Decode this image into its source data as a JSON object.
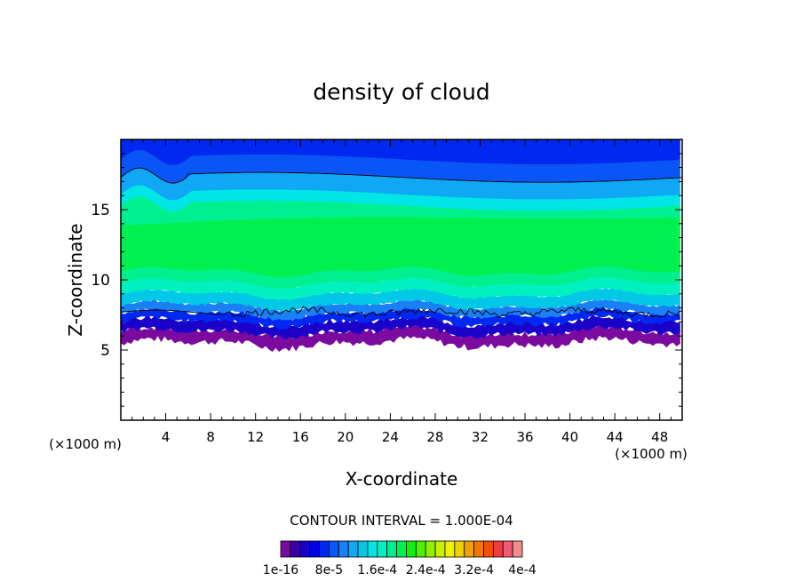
{
  "chart_data": {
    "type": "heatmap",
    "title": "density of cloud",
    "xlabel": "X-coordinate",
    "ylabel": "Z-coordinate",
    "x_unit": "(×1000 m)",
    "xlim": [
      0,
      50
    ],
    "ylim": [
      0,
      20
    ],
    "x_ticks": [
      4,
      8,
      12,
      16,
      20,
      24,
      28,
      32,
      36,
      40,
      44,
      48
    ],
    "y_ticks": [
      5,
      10,
      15
    ],
    "grid": false,
    "contour_interval_label": "CONTOUR INTERVAL = 1.000E-04",
    "colorbar": {
      "labels": [
        "1e-16",
        "8e-5",
        "1.6e-4",
        "2.4e-4",
        "3.2e-4",
        "4e-4"
      ],
      "colors": [
        "#7b0a9e",
        "#3a00a8",
        "#1a00c8",
        "#0000e6",
        "#0028f0",
        "#0a55f5",
        "#1a80f5",
        "#10a8f5",
        "#00c8e6",
        "#00e6e6",
        "#00f0c0",
        "#00f090",
        "#00f050",
        "#10f010",
        "#50f000",
        "#90f000",
        "#c8f000",
        "#f0f000",
        "#f0d000",
        "#f0a000",
        "#f07800",
        "#f05000",
        "#f03c3c",
        "#f05a78",
        "#f08c8c"
      ],
      "range": [
        0,
        0.0004
      ]
    },
    "layers": [
      {
        "z_bottom": 5.5,
        "z_top": 6.3,
        "color": "#7b0a9e",
        "jag": 0.25
      },
      {
        "z_bottom": 6.3,
        "z_top": 7.0,
        "color": "#1a00c8",
        "jag": 0.2
      },
      {
        "z_bottom": 7.0,
        "z_top": 7.6,
        "color": "#0028f0",
        "jag": 0.18
      },
      {
        "z_bottom": 7.6,
        "z_top": 8.2,
        "color": "#1a80f5",
        "jag": 0.12
      },
      {
        "z_bottom": 8.2,
        "z_top": 9.0,
        "color": "#00c8e6",
        "jag": 0.08
      },
      {
        "z_bottom": 9.0,
        "z_top": 9.8,
        "color": "#00f0c0",
        "jag": 0.05
      },
      {
        "z_bottom": 9.8,
        "z_top": 10.6,
        "color": "#00f090",
        "jag": 0.02
      },
      {
        "z_bottom": 10.6,
        "z_top": 14.3,
        "color": "#00f050",
        "jag": 0
      },
      {
        "z_bottom": 14.3,
        "z_top": 15.3,
        "color": "#00f090",
        "jag": 0
      },
      {
        "z_bottom": 15.3,
        "z_top": 16.1,
        "color": "#00e6e6",
        "jag": 0
      },
      {
        "z_bottom": 16.1,
        "z_top": 17.3,
        "color": "#10a8f5",
        "jag": 0
      },
      {
        "z_bottom": 17.3,
        "z_top": 18.6,
        "color": "#0a55f5",
        "jag": 0
      },
      {
        "z_bottom": 18.6,
        "z_top": 20.0,
        "color": "#0028f0",
        "jag": 0
      }
    ],
    "contour_lines": [
      {
        "z": 17.3
      },
      {
        "z": 7.7
      }
    ]
  }
}
